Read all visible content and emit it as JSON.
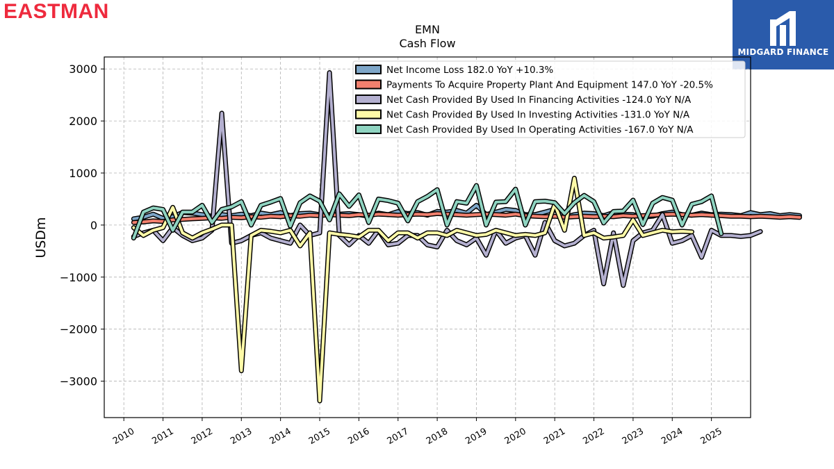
{
  "header": {
    "logo_text": "EASTMAN",
    "brand_name": "MIDGARD FINANCE",
    "logo_color": "#ee2a3d",
    "brand_color": "#2a5bab"
  },
  "chart_data": {
    "type": "line",
    "title": "EMN",
    "subtitle": "Cash Flow",
    "xlabel": "",
    "ylabel": "USDm",
    "ylim": [
      -3700,
      3230
    ],
    "xlim": [
      2009.5,
      2026.0
    ],
    "yticks": [
      3000,
      2000,
      1000,
      0,
      -1000,
      -2000,
      -3000
    ],
    "ytick_labels": [
      "3000",
      "2000",
      "1000",
      "0",
      "−1000",
      "−2000",
      "−3000"
    ],
    "xticks": [
      2010,
      2011,
      2012,
      2013,
      2014,
      2015,
      2016,
      2017,
      2018,
      2019,
      2020,
      2021,
      2022,
      2023,
      2024,
      2025
    ],
    "xtick_labels": [
      "2010",
      "2011",
      "2012",
      "2013",
      "2014",
      "2015",
      "2016",
      "2017",
      "2018",
      "2019",
      "2020",
      "2021",
      "2022",
      "2023",
      "2024",
      "2025"
    ],
    "grid": true,
    "legend_position": "top-right",
    "x_start": 2010.25,
    "x_step": 0.25,
    "series": [
      {
        "name": "Net Income Loss  182.0 YoY +10.3%",
        "color": "#7ea6c8",
        "values": [
          120,
          150,
          210,
          130,
          160,
          240,
          230,
          200,
          170,
          200,
          180,
          210,
          180,
          230,
          200,
          240,
          180,
          220,
          230,
          200,
          190,
          210,
          220,
          200,
          170,
          230,
          200,
          260,
          220,
          240,
          190,
          260,
          250,
          280,
          230,
          380,
          200,
          250,
          300,
          280,
          200,
          200,
          250,
          300,
          150,
          200,
          230,
          220,
          180,
          240,
          210,
          200,
          150,
          170,
          220,
          250,
          200,
          190,
          230,
          200,
          210,
          200,
          180,
          240,
          200,
          220,
          180,
          200,
          182
        ]
      },
      {
        "name": "Payments To Acquire Property Plant And Equipment  147.0 YoY -20.5%",
        "color": "#f2806e",
        "values": [
          50,
          60,
          80,
          70,
          100,
          110,
          120,
          130,
          140,
          130,
          150,
          140,
          160,
          150,
          170,
          160,
          180,
          170,
          190,
          180,
          200,
          190,
          180,
          200,
          190,
          210,
          200,
          190,
          200,
          210,
          200,
          220,
          210,
          200,
          190,
          200,
          210,
          200,
          190,
          210,
          180,
          170,
          160,
          170,
          150,
          160,
          170,
          160,
          170,
          160,
          180,
          170,
          180,
          190,
          200,
          210,
          200,
          190,
          200,
          190,
          180,
          170,
          170,
          160,
          170,
          160,
          150,
          160,
          147
        ]
      },
      {
        "name": "Net Cash Provided By Used In Financing Activities  -124.0 YoY N/A",
        "color": "#b4b0d0",
        "values": [
          -220,
          -150,
          -100,
          -300,
          -50,
          -200,
          -300,
          -250,
          -100,
          2150,
          -350,
          -300,
          -200,
          -150,
          -250,
          -300,
          -350,
          0,
          -200,
          -150,
          2930,
          -200,
          -380,
          -200,
          -350,
          -100,
          -380,
          -350,
          -200,
          -200,
          -380,
          -420,
          -100,
          -300,
          -380,
          -250,
          -580,
          -100,
          -350,
          -250,
          -200,
          -580,
          50,
          -300,
          -400,
          -350,
          -200,
          -100,
          -1130,
          -150,
          -1160,
          -300,
          -150,
          -100,
          200,
          -350,
          -300,
          -200,
          -620,
          -100,
          -200,
          -200,
          -220,
          -200,
          -124
        ]
      },
      {
        "name": "Net Cash Provided By Used In Investing Activities  -131.0 YoY N/A",
        "color": "#fffaa8",
        "values": [
          -50,
          -200,
          -100,
          -50,
          340,
          -150,
          -250,
          -150,
          -80,
          0,
          0,
          -2800,
          -200,
          -100,
          -120,
          -150,
          -100,
          -400,
          -150,
          -3380,
          -150,
          -180,
          -200,
          -230,
          -100,
          -100,
          -300,
          -150,
          -150,
          -250,
          -150,
          -150,
          -200,
          -100,
          -150,
          -200,
          -180,
          -100,
          -150,
          -200,
          -180,
          -200,
          -150,
          400,
          -100,
          900,
          -200,
          -150,
          -250,
          -230,
          -200,
          100,
          -200,
          -150,
          -100,
          -130,
          -120,
          -131
        ]
      },
      {
        "name": "Net Cash Provided By Used In Operating Activities  -167.0 YoY N/A",
        "color": "#8fd4c1",
        "values": [
          -250,
          250,
          330,
          300,
          -100,
          250,
          250,
          380,
          50,
          300,
          350,
          450,
          0,
          380,
          440,
          510,
          -20,
          430,
          560,
          460,
          100,
          600,
          360,
          580,
          50,
          500,
          470,
          420,
          80,
          450,
          550,
          680,
          0,
          450,
          420,
          760,
          0,
          440,
          450,
          690,
          0,
          450,
          460,
          430,
          220,
          430,
          570,
          450,
          40,
          260,
          270,
          480,
          10,
          420,
          530,
          480,
          0,
          400,
          450,
          560,
          -167
        ]
      }
    ]
  }
}
